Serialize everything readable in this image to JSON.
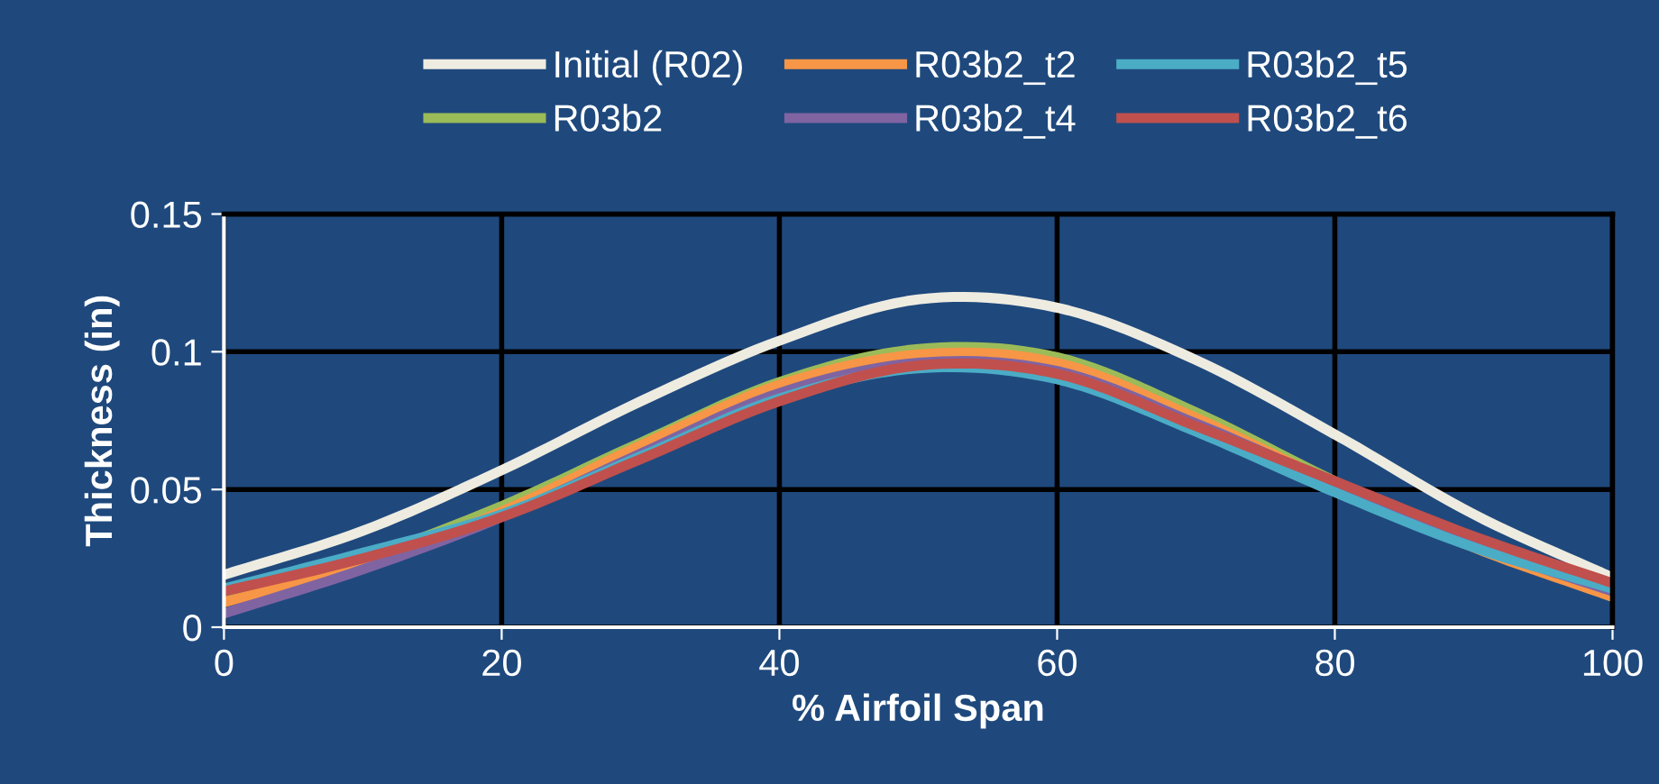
{
  "chart_data": {
    "type": "line",
    "xlabel": "% Airfoil Span",
    "ylabel": "Thickness (in)",
    "x": [
      0,
      10,
      20,
      30,
      40,
      50,
      60,
      70,
      80,
      90,
      100
    ],
    "xlim": [
      0,
      100
    ],
    "xticks": [
      0,
      20,
      40,
      60,
      80,
      100
    ],
    "ylim": [
      0,
      0.15
    ],
    "yticks": [
      0,
      0.05,
      0.1,
      0.15
    ],
    "grid": true,
    "legend": "top",
    "marker": "none",
    "line_style": "solid",
    "series": [
      {
        "name": "Initial (R02)",
        "color": "#eeece1",
        "values": [
          0.019,
          0.035,
          0.057,
          0.082,
          0.104,
          0.119,
          0.116,
          0.097,
          0.07,
          0.041,
          0.018
        ]
      },
      {
        "name": "R03b2",
        "color": "#9bbb59",
        "values": [
          0.012,
          0.025,
          0.044,
          0.067,
          0.089,
          0.101,
          0.098,
          0.078,
          0.053,
          0.03,
          0.011
        ]
      },
      {
        "name": "R03b2_t2",
        "color": "#f79646",
        "values": [
          0.009,
          0.023,
          0.042,
          0.066,
          0.088,
          0.099,
          0.096,
          0.076,
          0.052,
          0.029,
          0.011
        ]
      },
      {
        "name": "R03b2_t4",
        "color": "#8064a2",
        "values": [
          0.005,
          0.021,
          0.04,
          0.063,
          0.085,
          0.096,
          0.093,
          0.074,
          0.052,
          0.03,
          0.013
        ]
      },
      {
        "name": "R03b2_t5",
        "color": "#4bacc6",
        "values": [
          0.014,
          0.027,
          0.041,
          0.062,
          0.083,
          0.094,
          0.09,
          0.071,
          0.049,
          0.029,
          0.014
        ]
      },
      {
        "name": "R03b2_t6",
        "color": "#c0504d",
        "values": [
          0.013,
          0.025,
          0.04,
          0.061,
          0.082,
          0.095,
          0.092,
          0.073,
          0.053,
          0.033,
          0.016
        ]
      }
    ]
  }
}
